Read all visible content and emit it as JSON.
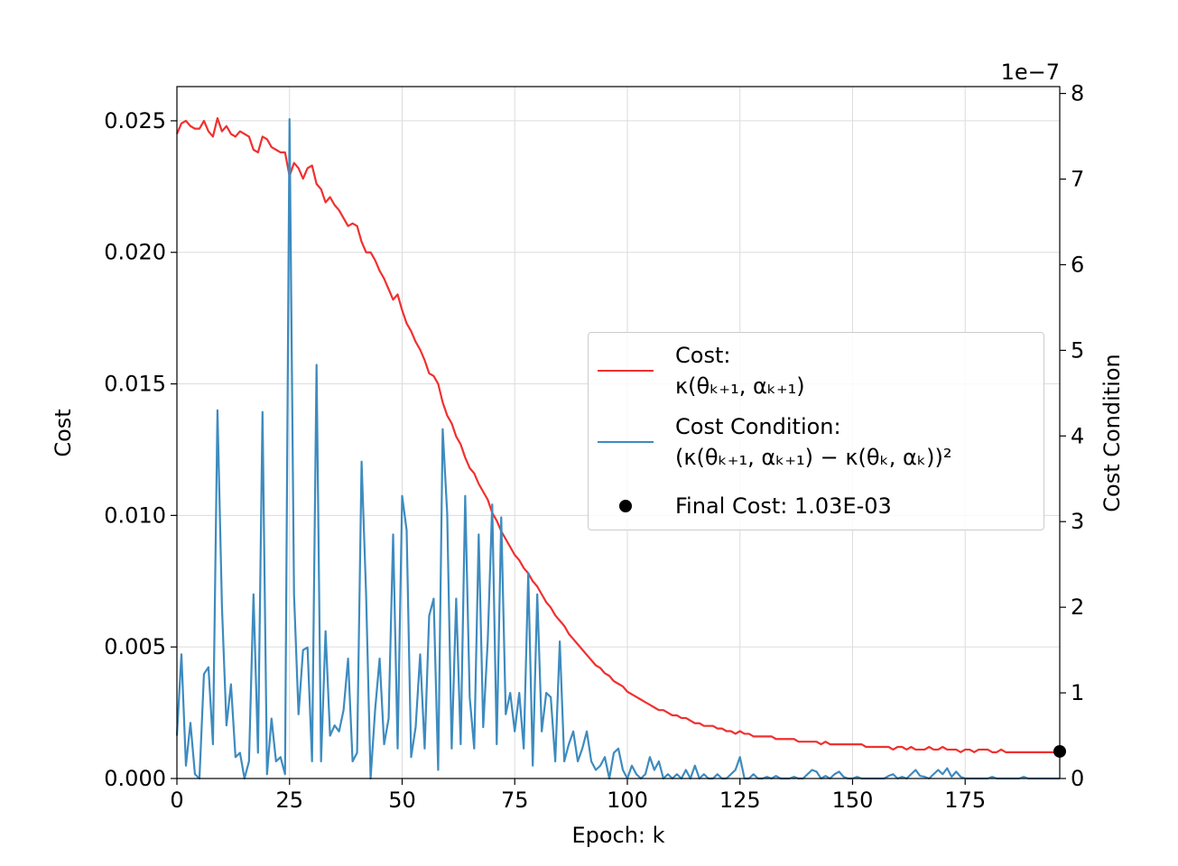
{
  "chart_data": {
    "type": "line",
    "x_label": "Epoch: k",
    "y_label": "Cost",
    "y2_label": "Cost Condition",
    "y2_offset": "1e−7",
    "x": [
      0,
      1,
      2,
      3,
      4,
      5,
      6,
      7,
      8,
      9,
      10,
      11,
      12,
      13,
      14,
      15,
      16,
      17,
      18,
      19,
      20,
      21,
      22,
      23,
      24,
      25,
      26,
      27,
      28,
      29,
      30,
      31,
      32,
      33,
      34,
      35,
      36,
      37,
      38,
      39,
      40,
      41,
      42,
      43,
      44,
      45,
      46,
      47,
      48,
      49,
      50,
      51,
      52,
      53,
      54,
      55,
      56,
      57,
      58,
      59,
      60,
      61,
      62,
      63,
      64,
      65,
      66,
      67,
      68,
      69,
      70,
      71,
      72,
      73,
      74,
      75,
      76,
      77,
      78,
      79,
      80,
      81,
      82,
      83,
      84,
      85,
      86,
      87,
      88,
      89,
      90,
      91,
      92,
      93,
      94,
      95,
      96,
      97,
      98,
      99,
      100,
      101,
      102,
      103,
      104,
      105,
      106,
      107,
      108,
      109,
      110,
      111,
      112,
      113,
      114,
      115,
      116,
      117,
      118,
      119,
      120,
      121,
      122,
      123,
      124,
      125,
      126,
      127,
      128,
      129,
      130,
      131,
      132,
      133,
      134,
      135,
      136,
      137,
      138,
      139,
      140,
      141,
      142,
      143,
      144,
      145,
      146,
      147,
      148,
      149,
      150,
      151,
      152,
      153,
      154,
      155,
      156,
      157,
      158,
      159,
      160,
      161,
      162,
      163,
      164,
      165,
      166,
      167,
      168,
      169,
      170,
      171,
      172,
      173,
      174,
      175,
      176,
      177,
      178,
      179,
      180,
      181,
      182,
      183,
      184,
      185,
      186,
      187,
      188,
      189,
      190,
      191,
      192,
      193,
      194,
      195,
      196
    ],
    "xlim": [
      0,
      196
    ],
    "xticks": [
      0,
      25,
      50,
      75,
      100,
      125,
      150,
      175
    ],
    "ylim": [
      0,
      0.0263
    ],
    "yticks": [
      {
        "value": 0,
        "label": "0.000"
      },
      {
        "value": 0.005,
        "label": "0.005"
      },
      {
        "value": 0.01,
        "label": "0.010"
      },
      {
        "value": 0.015,
        "label": "0.015"
      },
      {
        "value": 0.02,
        "label": "0.020"
      },
      {
        "value": 0.025,
        "label": "0.025"
      }
    ],
    "y2lim": [
      0,
      8.08
    ],
    "y2ticks": [
      0,
      1,
      2,
      3,
      4,
      5,
      6,
      7,
      8
    ],
    "grid": true,
    "series": [
      {
        "name": "Cost:\nκ(θₖ₊₁, αₖ₊₁)",
        "color": "#f03030",
        "values": [
          0.0245,
          0.0249,
          0.025,
          0.0248,
          0.0247,
          0.0247,
          0.025,
          0.0246,
          0.0244,
          0.0251,
          0.0246,
          0.0248,
          0.0245,
          0.0244,
          0.0246,
          0.0245,
          0.0244,
          0.0239,
          0.0238,
          0.0244,
          0.0243,
          0.024,
          0.0239,
          0.0238,
          0.0238,
          0.0229,
          0.0234,
          0.0232,
          0.0228,
          0.0232,
          0.0233,
          0.0226,
          0.0224,
          0.0219,
          0.0221,
          0.0218,
          0.0216,
          0.0213,
          0.021,
          0.0211,
          0.021,
          0.0204,
          0.02,
          0.02,
          0.0197,
          0.0193,
          0.019,
          0.0186,
          0.0182,
          0.0184,
          0.0178,
          0.0173,
          0.017,
          0.0166,
          0.0163,
          0.0159,
          0.0154,
          0.0153,
          0.015,
          0.0143,
          0.0138,
          0.0135,
          0.013,
          0.0127,
          0.0122,
          0.0118,
          0.0116,
          0.0112,
          0.0109,
          0.0106,
          0.0101,
          0.0098,
          0.0094,
          0.0091,
          0.0088,
          0.0085,
          0.0083,
          0.008,
          0.0078,
          0.0075,
          0.0073,
          0.007,
          0.0067,
          0.0065,
          0.0062,
          0.006,
          0.0058,
          0.0055,
          0.0053,
          0.0051,
          0.0049,
          0.0047,
          0.0045,
          0.0043,
          0.0042,
          0.004,
          0.0039,
          0.0037,
          0.0036,
          0.0035,
          0.0033,
          0.0032,
          0.0031,
          0.003,
          0.0029,
          0.0028,
          0.0027,
          0.0026,
          0.0026,
          0.0025,
          0.0024,
          0.0024,
          0.0023,
          0.0023,
          0.0022,
          0.0021,
          0.0021,
          0.002,
          0.002,
          0.002,
          0.0019,
          0.0019,
          0.0018,
          0.0018,
          0.0017,
          0.0018,
          0.0017,
          0.0017,
          0.0016,
          0.0016,
          0.0016,
          0.0016,
          0.0016,
          0.0015,
          0.0015,
          0.0015,
          0.0015,
          0.0015,
          0.0014,
          0.0014,
          0.0014,
          0.0014,
          0.0014,
          0.0013,
          0.0014,
          0.0013,
          0.0013,
          0.0013,
          0.0013,
          0.0013,
          0.0013,
          0.0013,
          0.0013,
          0.0012,
          0.0012,
          0.0012,
          0.0012,
          0.0012,
          0.0012,
          0.0011,
          0.0012,
          0.0012,
          0.0011,
          0.0012,
          0.0011,
          0.0011,
          0.0011,
          0.0012,
          0.0011,
          0.0011,
          0.0012,
          0.0011,
          0.0011,
          0.0011,
          0.001,
          0.0011,
          0.0011,
          0.001,
          0.0011,
          0.0011,
          0.0011,
          0.001,
          0.001,
          0.0011,
          0.001,
          0.001,
          0.001,
          0.001,
          0.001,
          0.001,
          0.001,
          0.001,
          0.001,
          0.001,
          0.001,
          0.001,
          0.00103
        ]
      },
      {
        "name": "Cost Condition:\n(κ(θₖ₊₁, αₖ₊₁) − κ(θₖ, αₖ))²",
        "color": "#3d8bbf",
        "axis": "y2",
        "values": [
          0.5,
          1.45,
          0.15,
          0.65,
          0.05,
          0.0,
          1.22,
          1.3,
          0.4,
          4.3,
          2.0,
          0.62,
          1.1,
          0.25,
          0.3,
          0.0,
          0.2,
          2.15,
          0.3,
          4.28,
          0.05,
          0.7,
          0.2,
          0.25,
          0.05,
          7.7,
          2.15,
          0.75,
          1.5,
          1.53,
          0.2,
          4.83,
          0.2,
          1.72,
          0.5,
          0.62,
          0.55,
          0.8,
          1.4,
          0.2,
          0.3,
          3.7,
          2.15,
          0.0,
          0.8,
          1.4,
          0.4,
          0.7,
          2.85,
          0.35,
          3.3,
          2.9,
          0.25,
          0.6,
          1.45,
          0.35,
          1.9,
          2.1,
          0.1,
          4.08,
          3.1,
          0.35,
          2.1,
          0.4,
          3.3,
          0.95,
          0.35,
          2.85,
          0.6,
          1.6,
          3.2,
          0.4,
          3.05,
          0.75,
          1.0,
          0.55,
          1.0,
          0.35,
          2.4,
          0.15,
          2.15,
          0.55,
          1.0,
          0.95,
          0.2,
          1.6,
          0.2,
          0.4,
          0.55,
          0.2,
          0.35,
          0.55,
          0.2,
          0.1,
          0.15,
          0.25,
          0.0,
          0.3,
          0.35,
          0.1,
          0.0,
          0.15,
          0.05,
          0.0,
          0.05,
          0.25,
          0.1,
          0.2,
          0.0,
          0.05,
          0.0,
          0.05,
          0.0,
          0.1,
          0.0,
          0.15,
          0.0,
          0.05,
          0.0,
          0.0,
          0.05,
          0.0,
          0.0,
          0.05,
          0.1,
          0.25,
          0.0,
          0.0,
          0.05,
          0.0,
          0.0,
          0.02,
          0.0,
          0.03,
          0.0,
          0.0,
          0.0,
          0.02,
          0.0,
          0.0,
          0.05,
          0.1,
          0.08,
          0.0,
          0.03,
          0.0,
          0.05,
          0.08,
          0.02,
          0.0,
          0.0,
          0.02,
          0.0,
          0.0,
          0.0,
          0.0,
          0.0,
          0.0,
          0.03,
          0.05,
          0.0,
          0.02,
          0.0,
          0.05,
          0.1,
          0.03,
          0.02,
          0.0,
          0.05,
          0.1,
          0.05,
          0.12,
          0.02,
          0.08,
          0.02,
          0.0,
          0.0,
          0.0,
          0.0,
          0.0,
          0.0,
          0.02,
          0.0,
          0.0,
          0.0,
          0.0,
          0.0,
          0.0,
          0.02,
          0.0,
          0.0,
          0.0,
          0.0,
          0.0,
          0.0,
          0.0,
          0.0
        ]
      }
    ],
    "final_point": {
      "name": "Final Cost: 1.03E-03",
      "x": 196,
      "y": 0.00103,
      "color": "#000000"
    }
  }
}
